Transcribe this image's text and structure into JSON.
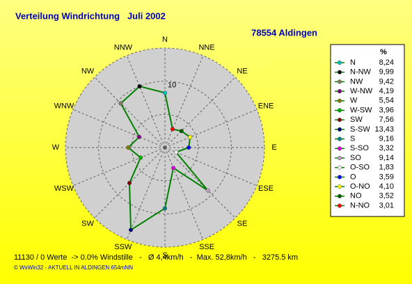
{
  "chart_data": {
    "type": "radar",
    "title": "Verteilung Windrichtung   Juli 2002",
    "subtitle": "78554 Aldingen",
    "legend_header": "%",
    "categories": [
      "N",
      "N-NW",
      "NW",
      "W-NW",
      "W",
      "W-SW",
      "SW",
      "S-SW",
      "S",
      "S-SO",
      "SO",
      "O-SO",
      "O",
      "O-NO",
      "NO",
      "N-NO"
    ],
    "values": [
      8.24,
      9.99,
      9.42,
      4.19,
      5.54,
      3.96,
      7.56,
      13.43,
      9.16,
      3.32,
      9.14,
      1.83,
      3.59,
      4.1,
      3.52,
      3.01
    ],
    "value_labels": [
      "8,24",
      "9,99",
      "9,42",
      "4,19",
      "5,54",
      "3,96",
      "7,56",
      "13,43",
      "9,16",
      "3,32",
      "9,14",
      "1,83",
      "3,59",
      "4,10",
      "3,52",
      "3,01"
    ],
    "colors": [
      "#00c0c0",
      "#000000",
      "#808060",
      "#800080",
      "#808000",
      "#00b000",
      "#800000",
      "#000080",
      "#008080",
      "#e000e0",
      "#c0a0c0",
      "#f0f0f0",
      "#0000ff",
      "#ffff00",
      "#006000",
      "#ff0000"
    ],
    "line_color": "#008000",
    "axis_labels": [
      "N",
      "NNE",
      "NE",
      "ENE",
      "E",
      "ESE",
      "SE",
      "SSE",
      "S",
      "SSW",
      "SW",
      "WSW",
      "W",
      "WNW",
      "NW",
      "NNW"
    ],
    "rlim": [
      0,
      15
    ],
    "rgrid": [
      5,
      10,
      15
    ],
    "rticks": [
      10
    ],
    "footer": "11130 / 0 Werte  -> 0.0% Windstille   -   Ø 4,4km/h   -  Max. 52,8km/h   -   3275.5 km",
    "credit": "© WsWin32  -  AKTUELL IN ALDINGEN 654mNN"
  }
}
